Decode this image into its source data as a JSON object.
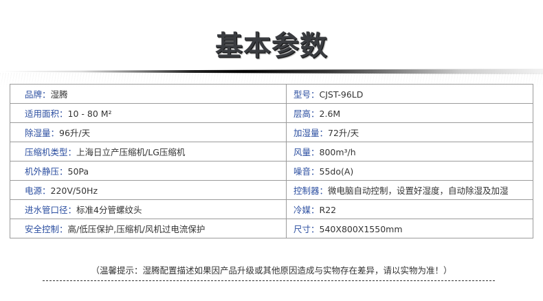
{
  "title": "基本参数",
  "rows": [
    {
      "left": {
        "label": "品牌：",
        "value": "湿腾"
      },
      "right": {
        "label": "型号：",
        "value": "CJST-96LD"
      }
    },
    {
      "left": {
        "label": "适用面积：",
        "value": "10 - 80 M²"
      },
      "right": {
        "label": "层高：",
        "value": "2.6M"
      }
    },
    {
      "left": {
        "label": "除湿量：",
        "value": "96升/天"
      },
      "right": {
        "label": "加湿量：",
        "value": "72升/天"
      }
    },
    {
      "left": {
        "label": "压缩机类型：",
        "value": "上海日立产压缩机/LG压缩机"
      },
      "right": {
        "label": "风量：",
        "value": "800m³/h"
      }
    },
    {
      "left": {
        "label": "机外静压：",
        "value": "50Pa"
      },
      "right": {
        "label": "噪音：",
        "value": "55do(A)"
      }
    },
    {
      "left": {
        "label": "电源：",
        "value": "220V/50Hz"
      },
      "right": {
        "label": "控制器：",
        "value": "微电脑自动控制，设置好湿度，自动除湿及加湿"
      }
    },
    {
      "left": {
        "label": "进水管口径：",
        "value": "标准4分管螺纹头"
      },
      "right": {
        "label": "冷媒：",
        "value": "R22"
      }
    },
    {
      "left": {
        "label": "安全控制：",
        "value": "高/低压保护,压缩机/风机过电流保护"
      },
      "right": {
        "label": "尺寸：",
        "value": "540X800X1550mm"
      }
    }
  ],
  "note": "（温馨提示：湿腾配置描述如果因产品升级或其他原因造成与实物存在差异，请以实物为准！）",
  "colors": {
    "label": "#2b4ea0",
    "text": "#333333",
    "border": "#9a9a9a"
  }
}
